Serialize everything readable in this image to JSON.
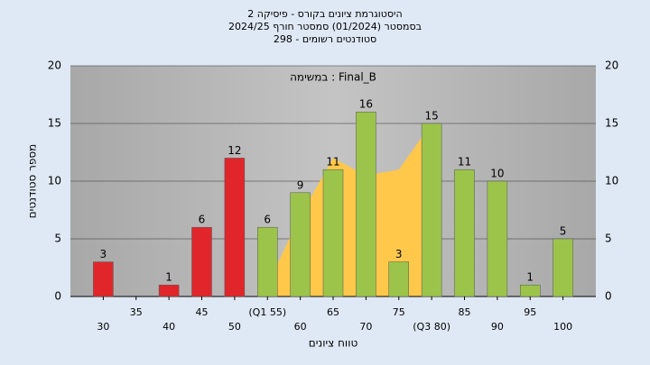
{
  "chart_data": {
    "type": "bar",
    "title": "היסטוגרמת ציונים בקורס - פיסיקה 2",
    "subtitle": "בסמסטר  (01/2024)  סמסטר חורף 2024/25",
    "subtitle2": "סטודנטים רשומים - 298",
    "annotation": "במשימה : Final_B",
    "x_label": "טווח ציונים",
    "y_label": "מספר סטודנטים",
    "categories": [
      "30",
      "35",
      "40",
      "45",
      "50",
      "(Q1 55)",
      "60",
      "65",
      "70",
      "75",
      "(Q3 80)",
      "85",
      "90",
      "95",
      "100"
    ],
    "values": [
      3,
      0,
      1,
      6,
      12,
      6,
      9,
      11,
      16,
      3,
      15,
      11,
      10,
      1,
      5
    ],
    "value_labels": [
      "3",
      null,
      "1",
      "6",
      "12",
      "6",
      "9",
      "11",
      "16",
      "3",
      "15",
      "11",
      "10",
      "1",
      "5"
    ],
    "colors": [
      "#e0262b",
      "#e0262b",
      "#e0262b",
      "#e0262b",
      "#e0262b",
      "#9cc44a",
      "#9cc44a",
      "#9cc44a",
      "#9cc44a",
      "#9cc44a",
      "#9cc44a",
      "#9cc44a",
      "#9cc44a",
      "#9cc44a",
      "#9cc44a"
    ],
    "curve_values": [
      null,
      null,
      null,
      null,
      null,
      1,
      7,
      12,
      10.5,
      11,
      15,
      null,
      null,
      null,
      null
    ],
    "curve_color": "#ffc84a",
    "ylim": [
      0,
      20
    ],
    "yticks": [
      0,
      5,
      10,
      15,
      20
    ],
    "grid": true
  }
}
